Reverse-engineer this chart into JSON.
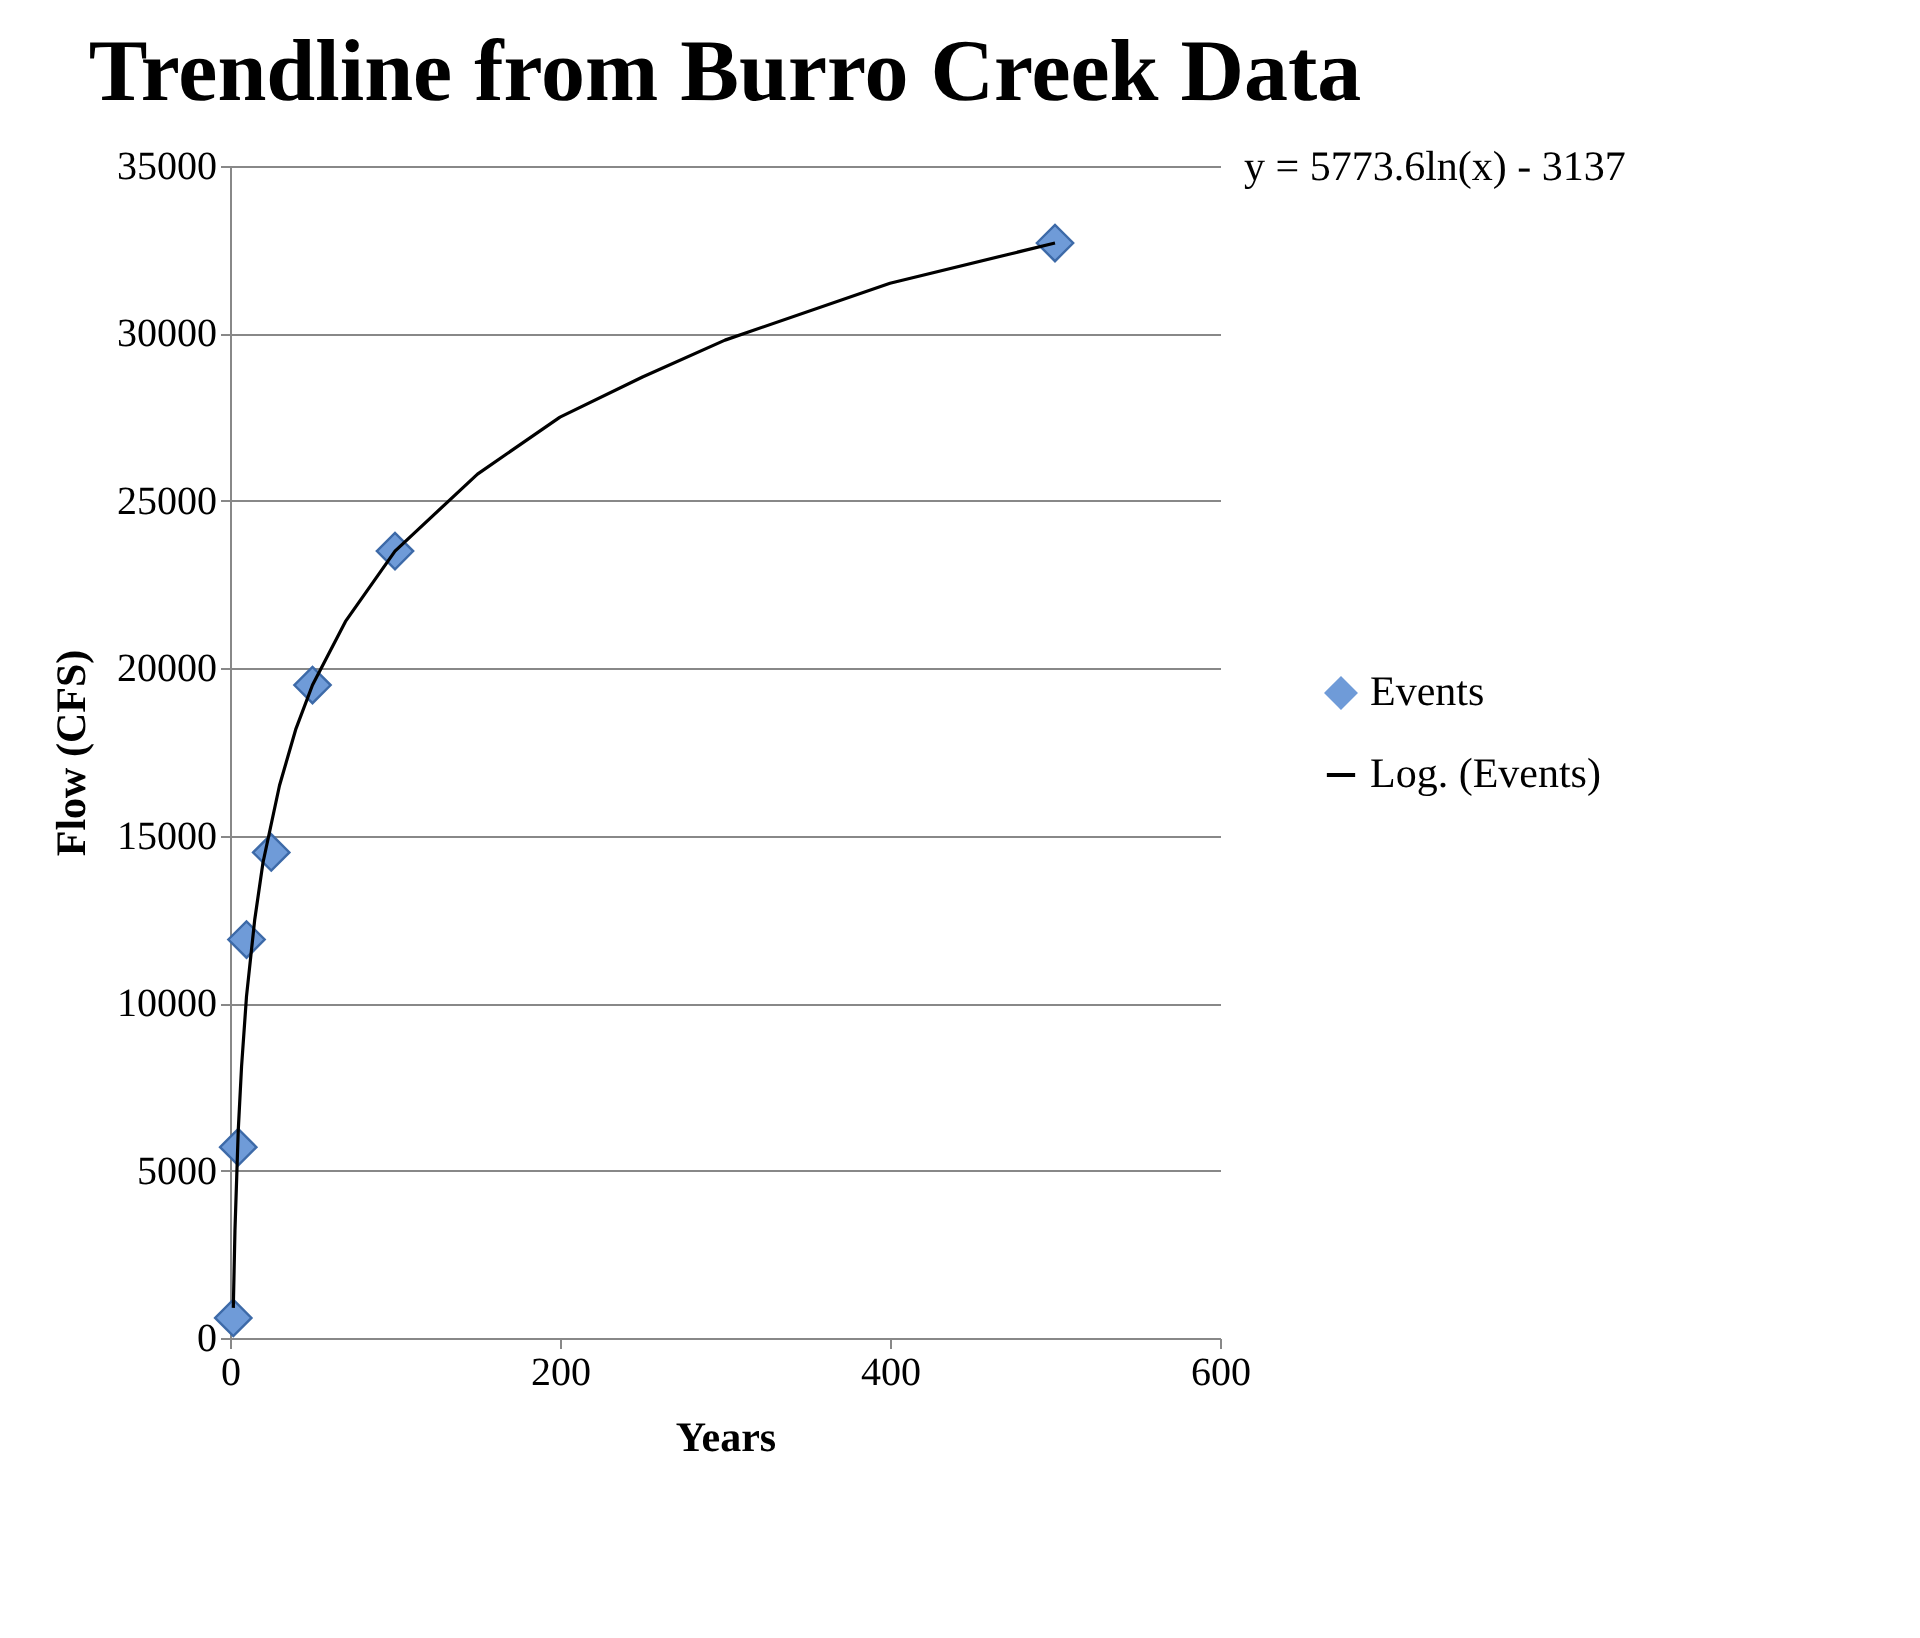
{
  "chart_data": {
    "type": "scatter",
    "title": "Trendline from Burro Creek Data",
    "xlabel": "Years",
    "ylabel": "Flow (CFS)",
    "annotations": [
      "y = 5773.6ln(x) - 3137"
    ],
    "xlim": [
      0,
      600
    ],
    "xticks": [
      0,
      200,
      400,
      600
    ],
    "ylim": [
      0,
      35000
    ],
    "yticks": [
      0,
      5000,
      10000,
      15000,
      20000,
      25000,
      30000,
      35000
    ],
    "grid": "y",
    "legend": "right",
    "marker": "diamond",
    "series": [
      {
        "name": "Events",
        "color": "#6f9bd8",
        "x": [
          2,
          5,
          10,
          25,
          50,
          100,
          500
        ],
        "values": [
          600,
          5700,
          11900,
          14500,
          19500,
          23500,
          32700
        ]
      },
      {
        "name": "Log. (Events)",
        "type": "line",
        "color": "#000000",
        "marker": "none",
        "line_style": "solid",
        "x": [
          2,
          3,
          5,
          7,
          10,
          15,
          20,
          30,
          40,
          50,
          70,
          100,
          150,
          200,
          250,
          300,
          400,
          500
        ],
        "values": [
          900,
          3200,
          6200,
          8100,
          10200,
          12500,
          14200,
          16500,
          18200,
          19500,
          21400,
          23500,
          25800,
          27500,
          28700,
          29800,
          31500,
          32700
        ]
      }
    ]
  }
}
